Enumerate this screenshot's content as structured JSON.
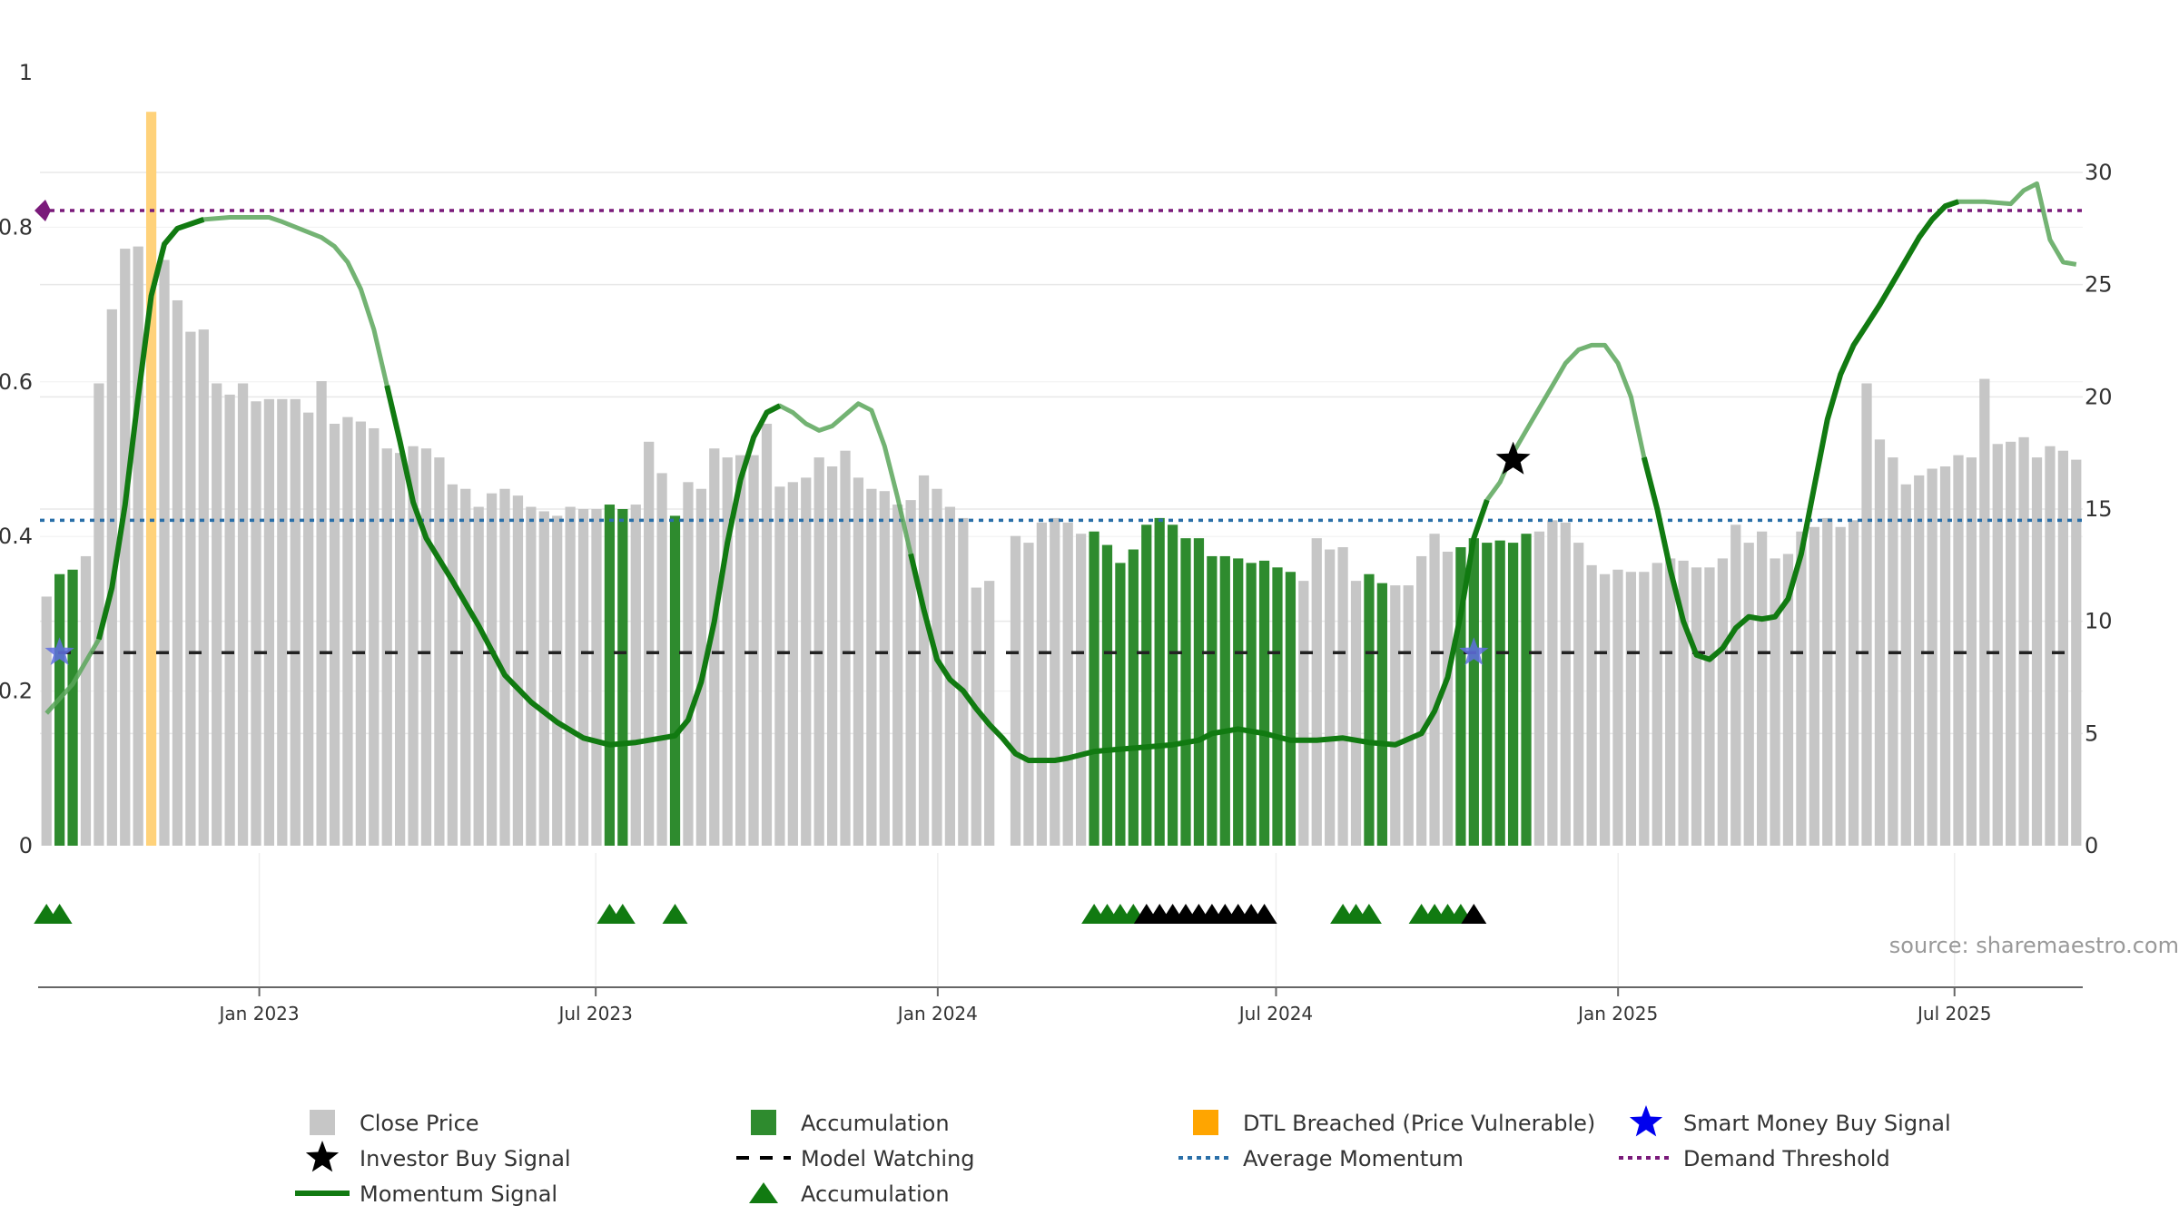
{
  "chart_data": {
    "type": "bar",
    "source": "source: sharemaestro.com",
    "colors": {
      "close_price": "#c6c6c6",
      "accumulation": "#2e8b2e",
      "dtl_breached": "#ffd27a",
      "momentum": "#117a11",
      "average_momentum": "#2a6fa8",
      "demand_threshold": "#7a1a7a",
      "investor_star": "#000000",
      "smart_money_star": "#5f6fe0",
      "grid": "#e8e8e8"
    },
    "left_axis": {
      "ylim": [
        0,
        1
      ],
      "ticks": [
        0,
        0.2,
        0.4,
        0.6,
        0.8,
        1
      ],
      "tick_labels": [
        "0",
        "0.2",
        "0.4",
        "0.6",
        "0.8",
        "1"
      ]
    },
    "right_axis": {
      "ylim": [
        0,
        33
      ],
      "ticks": [
        0,
        5,
        10,
        15,
        20,
        25,
        30
      ],
      "tick_labels": [
        "0",
        "5",
        "10",
        "15",
        "20",
        "25",
        "30"
      ]
    },
    "x_axis": {
      "date_range": [
        "2022-09-05",
        "2025-09-08"
      ],
      "tick_dates": [
        "2023-01-01",
        "2023-07-01",
        "2024-01-01",
        "2024-07-01",
        "2025-01-01",
        "2025-07-01"
      ],
      "tick_labels": [
        "Jan 2023",
        "Jul 2023",
        "Jan 2024",
        "Jul 2024",
        "Jan 2025",
        "Jul 2025"
      ]
    },
    "close_prices": [
      11.1,
      12.1,
      12.3,
      12.9,
      20.6,
      23.9,
      26.6,
      26.7,
      27.2,
      26.1,
      24.3,
      22.9,
      23.0,
      20.6,
      20.1,
      20.6,
      19.8,
      19.9,
      19.9,
      19.9,
      19.3,
      20.7,
      18.8,
      19.1,
      18.9,
      18.6,
      17.7,
      17.5,
      17.8,
      17.7,
      17.3,
      16.1,
      15.9,
      15.1,
      15.7,
      15.9,
      15.6,
      15.1,
      14.9,
      14.7,
      15.1,
      15.0,
      15.0,
      15.2,
      15.0,
      15.2,
      18.0,
      16.6,
      14.7,
      16.2,
      15.9,
      17.7,
      17.3,
      17.4,
      17.4,
      18.8,
      16.0,
      16.2,
      16.4,
      17.3,
      16.9,
      17.6,
      16.4,
      15.9,
      15.8,
      15.2,
      15.4,
      16.5,
      15.9,
      15.1,
      14.6,
      11.5,
      11.8,
      0,
      13.8,
      13.5,
      14.4,
      14.6,
      14.4,
      13.9,
      14.0,
      13.4,
      12.6,
      13.2,
      14.3,
      14.6,
      14.3,
      13.7,
      13.7,
      12.9,
      12.9,
      12.8,
      12.6,
      12.7,
      12.4,
      12.2,
      11.8,
      13.7,
      13.2,
      13.3,
      11.8,
      12.1,
      11.7,
      11.6,
      11.6,
      12.9,
      13.9,
      13.1,
      13.3,
      13.7,
      13.5,
      13.6,
      13.5,
      13.9,
      14.0,
      14.5,
      14.4,
      13.5,
      12.5,
      12.1,
      12.3,
      12.2,
      12.2,
      12.6,
      12.8,
      12.7,
      12.4,
      12.4,
      12.8,
      14.3,
      13.5,
      14.0,
      12.8,
      13.0,
      14.0,
      14.2,
      14.6,
      14.2,
      14.5,
      20.6,
      18.1,
      17.3,
      16.1,
      16.5,
      16.8,
      16.9,
      17.4,
      17.3,
      20.8,
      17.9,
      18.0,
      18.2,
      17.3,
      17.8,
      17.6,
      17.2
    ],
    "bar_types": [
      "p",
      "a",
      "a",
      "p",
      "p",
      "p",
      "p",
      "p",
      "d",
      "p",
      "p",
      "p",
      "p",
      "p",
      "p",
      "p",
      "p",
      "p",
      "p",
      "p",
      "p",
      "p",
      "p",
      "p",
      "p",
      "p",
      "p",
      "p",
      "p",
      "p",
      "p",
      "p",
      "p",
      "p",
      "p",
      "p",
      "p",
      "p",
      "p",
      "p",
      "p",
      "p",
      "p",
      "a",
      "a",
      "p",
      "p",
      "p",
      "a",
      "p",
      "p",
      "p",
      "p",
      "p",
      "p",
      "p",
      "p",
      "p",
      "p",
      "p",
      "p",
      "p",
      "p",
      "p",
      "p",
      "p",
      "p",
      "p",
      "p",
      "p",
      "p",
      "p",
      "p",
      "n",
      "p",
      "p",
      "p",
      "p",
      "p",
      "p",
      "a",
      "a",
      "a",
      "a",
      "a",
      "a",
      "a",
      "a",
      "a",
      "a",
      "a",
      "a",
      "a",
      "a",
      "a",
      "a",
      "p",
      "p",
      "p",
      "p",
      "p",
      "a",
      "a",
      "p",
      "p",
      "p",
      "p",
      "p",
      "a",
      "a",
      "a",
      "a",
      "a",
      "a",
      "p",
      "p",
      "p",
      "p",
      "p",
      "p",
      "p",
      "p",
      "p",
      "p",
      "p",
      "p",
      "p",
      "p",
      "p",
      "p",
      "p",
      "p",
      "p",
      "p",
      "p",
      "p",
      "p",
      "p",
      "p",
      "p",
      "p",
      "p",
      "p",
      "p",
      "p",
      "p",
      "p",
      "p",
      "p",
      "p",
      "p",
      "p",
      "p",
      "p",
      "p",
      "p",
      "p",
      "p",
      "p",
      "p",
      "p"
    ],
    "momentum_signal": [
      [
        0,
        5.9
      ],
      [
        2,
        7.2
      ],
      [
        4,
        9.2
      ],
      [
        5,
        11.5
      ],
      [
        6,
        15.2
      ],
      [
        7,
        20.0
      ],
      [
        8,
        24.5
      ],
      [
        9,
        26.8
      ],
      [
        10,
        27.5
      ],
      [
        12,
        27.9
      ],
      [
        14,
        28.0
      ],
      [
        17,
        28.0
      ],
      [
        18,
        27.8
      ],
      [
        21,
        27.1
      ],
      [
        22,
        26.7
      ],
      [
        23,
        26.0
      ],
      [
        24,
        24.8
      ],
      [
        25,
        23.0
      ],
      [
        26,
        20.5
      ],
      [
        27,
        18.0
      ],
      [
        28,
        15.3
      ],
      [
        29,
        13.7
      ],
      [
        31,
        11.8
      ],
      [
        33,
        9.8
      ],
      [
        35,
        7.6
      ],
      [
        37,
        6.4
      ],
      [
        39,
        5.5
      ],
      [
        41,
        4.8
      ],
      [
        43,
        4.5
      ],
      [
        45,
        4.6
      ],
      [
        48,
        4.9
      ],
      [
        49,
        5.6
      ],
      [
        50,
        7.3
      ],
      [
        51,
        10.0
      ],
      [
        52,
        13.5
      ],
      [
        53,
        16.3
      ],
      [
        54,
        18.2
      ],
      [
        55,
        19.3
      ],
      [
        56,
        19.6
      ],
      [
        57,
        19.3
      ],
      [
        58,
        18.8
      ],
      [
        59,
        18.5
      ],
      [
        60,
        18.7
      ],
      [
        62,
        19.7
      ],
      [
        63,
        19.4
      ],
      [
        64,
        17.8
      ],
      [
        65,
        15.5
      ],
      [
        66,
        13.0
      ],
      [
        67,
        10.5
      ],
      [
        68,
        8.3
      ],
      [
        69,
        7.4
      ],
      [
        70,
        6.9
      ],
      [
        71,
        6.1
      ],
      [
        72,
        5.4
      ],
      [
        73,
        4.8
      ],
      [
        74,
        4.1
      ],
      [
        75,
        3.8
      ],
      [
        77,
        3.8
      ],
      [
        78,
        3.9
      ],
      [
        80,
        4.2
      ],
      [
        82,
        4.3
      ],
      [
        84,
        4.4
      ],
      [
        86,
        4.5
      ],
      [
        88,
        4.7
      ],
      [
        89,
        5.0
      ],
      [
        91,
        5.2
      ],
      [
        93,
        5.0
      ],
      [
        95,
        4.7
      ],
      [
        97,
        4.7
      ],
      [
        99,
        4.8
      ],
      [
        101,
        4.6
      ],
      [
        103,
        4.5
      ],
      [
        105,
        5.0
      ],
      [
        106,
        6.0
      ],
      [
        107,
        7.5
      ],
      [
        108,
        10.3
      ],
      [
        109,
        13.7
      ],
      [
        110,
        15.4
      ],
      [
        111,
        16.2
      ],
      [
        112,
        17.5
      ],
      [
        113,
        18.5
      ],
      [
        114,
        19.5
      ],
      [
        115,
        20.5
      ],
      [
        116,
        21.5
      ],
      [
        117,
        22.1
      ],
      [
        118,
        22.3
      ],
      [
        119,
        22.3
      ],
      [
        120,
        21.5
      ],
      [
        121,
        20.0
      ],
      [
        122,
        17.3
      ],
      [
        123,
        15.0
      ],
      [
        124,
        12.3
      ],
      [
        125,
        10.0
      ],
      [
        126,
        8.5
      ],
      [
        127,
        8.3
      ],
      [
        128,
        8.8
      ],
      [
        129,
        9.7
      ],
      [
        130,
        10.2
      ],
      [
        131,
        10.1
      ],
      [
        132,
        10.2
      ],
      [
        133,
        11.0
      ],
      [
        134,
        13.0
      ],
      [
        135,
        16.0
      ],
      [
        136,
        19.0
      ],
      [
        137,
        21.0
      ],
      [
        138,
        22.3
      ],
      [
        139,
        23.2
      ],
      [
        140,
        24.1
      ],
      [
        141,
        25.1
      ],
      [
        142,
        26.1
      ],
      [
        143,
        27.1
      ],
      [
        144,
        27.9
      ],
      [
        145,
        28.5
      ],
      [
        146,
        28.7
      ],
      [
        148,
        28.7
      ],
      [
        150,
        28.6
      ],
      [
        151,
        29.2
      ],
      [
        152,
        29.5
      ],
      [
        153,
        27.0
      ],
      [
        154,
        26.0
      ],
      [
        155,
        25.9
      ]
    ],
    "momentum_highlight_ranges": [
      [
        3,
        12
      ],
      [
        26,
        56
      ],
      [
        66,
        110
      ],
      [
        122,
        146
      ]
    ],
    "average_momentum": 14.5,
    "demand_threshold": 28.3,
    "model_watching": 8.6,
    "investor_buy_signals": [
      {
        "index": 112,
        "value": 17.2
      }
    ],
    "smart_money_buy_signals": [
      {
        "index": 1,
        "value": 8.6
      },
      {
        "index": 109,
        "value": 8.6
      }
    ],
    "marker_triangles": [
      {
        "index": 0,
        "color": "green"
      },
      {
        "index": 1,
        "color": "green"
      },
      {
        "index": 43,
        "color": "green"
      },
      {
        "index": 44,
        "color": "green"
      },
      {
        "index": 48,
        "color": "green"
      },
      {
        "index": 80,
        "color": "green"
      },
      {
        "index": 81,
        "color": "green"
      },
      {
        "index": 82,
        "color": "green"
      },
      {
        "index": 83,
        "color": "green"
      },
      {
        "index": 84,
        "color": "black"
      },
      {
        "index": 85,
        "color": "black"
      },
      {
        "index": 86,
        "color": "black"
      },
      {
        "index": 87,
        "color": "black"
      },
      {
        "index": 88,
        "color": "black"
      },
      {
        "index": 89,
        "color": "black"
      },
      {
        "index": 90,
        "color": "black"
      },
      {
        "index": 91,
        "color": "black"
      },
      {
        "index": 92,
        "color": "black"
      },
      {
        "index": 93,
        "color": "black"
      },
      {
        "index": 99,
        "color": "green"
      },
      {
        "index": 100,
        "color": "green"
      },
      {
        "index": 101,
        "color": "green"
      },
      {
        "index": 105,
        "color": "green"
      },
      {
        "index": 106,
        "color": "green"
      },
      {
        "index": 107,
        "color": "green"
      },
      {
        "index": 108,
        "color": "green"
      },
      {
        "index": 109,
        "color": "black"
      }
    ],
    "legend": [
      {
        "label": "Close Price",
        "symbol": "square",
        "color": "#c6c6c6"
      },
      {
        "label": "Accumulation",
        "symbol": "square",
        "color": "#2e8b2e"
      },
      {
        "label": "DTL Breached (Price Vulnerable)",
        "symbol": "square",
        "color": "#ffa500"
      },
      {
        "label": "Smart Money Buy Signal",
        "symbol": "star",
        "color": "#0000ee"
      },
      {
        "label": "Investor Buy Signal",
        "symbol": "star",
        "color": "#000000"
      },
      {
        "label": "Model Watching",
        "symbol": "dash",
        "color": "#000000"
      },
      {
        "label": "Average Momentum",
        "symbol": "dotted",
        "color": "#2a6fa8"
      },
      {
        "label": "Demand Threshold",
        "symbol": "dotted",
        "color": "#7a1a7a"
      },
      {
        "label": "Momentum Signal",
        "symbol": "line",
        "color": "#117a11"
      },
      {
        "label": "Accumulation",
        "symbol": "triangle",
        "color": "#117a11"
      }
    ]
  }
}
